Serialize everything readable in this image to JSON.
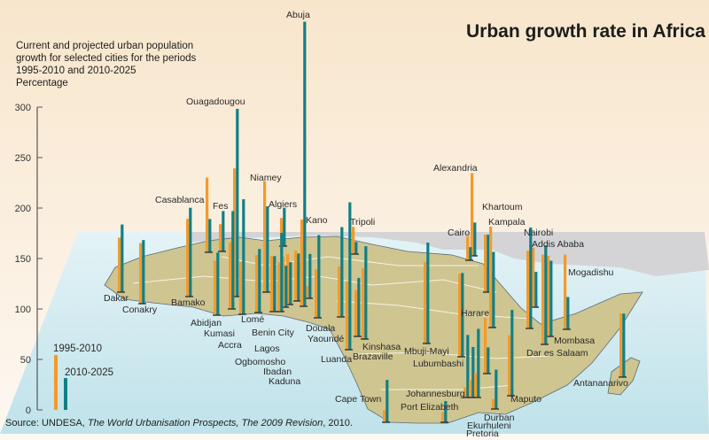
{
  "title": "Urban growth rate in Africa",
  "subtitle": [
    "Current and projected urban population",
    "growth for selected cities for the periods",
    "1995-2010 and 2010-2025"
  ],
  "unit": "Percentage",
  "source": {
    "prefix": "Source: UNDESA, ",
    "italic1": "The World Urbanisation Prospects, The 2009 Revision",
    "suffix": ", 2010."
  },
  "colors": {
    "period_1995_2010": "#f39a2b",
    "period_2010_2025": "#127f86",
    "land": "#cfc590",
    "sea": "#cfe9ef",
    "other_land": "#d4d4d6"
  },
  "chart_data": {
    "type": "bar",
    "subtype": "3d map-positioned bars",
    "ylabel": "Percentage",
    "ylim": [
      0,
      300
    ],
    "yticks": [
      "0",
      "50",
      "100",
      "150",
      "200",
      "250",
      "300"
    ],
    "legend": {
      "placement": "bottom-left",
      "entries": [
        "1995-2010",
        "2010-2025"
      ]
    },
    "series_names": [
      "1995-2010",
      "2010-2025"
    ],
    "cities": [
      {
        "name": "Dakar",
        "v1": 54,
        "v2": 67
      },
      {
        "name": "Conakry",
        "v1": 60,
        "v2": 63
      },
      {
        "name": "Bamako",
        "v1": 77,
        "v2": 88
      },
      {
        "name": "Casablanca",
        "v1": 74,
        "v2": 33
      },
      {
        "name": "Fes",
        "v1": 27,
        "v2": 40
      },
      {
        "name": "Ouagadougou",
        "v1": 127,
        "v2": 186
      },
      {
        "name": "Abidjan",
        "v1": 54,
        "v2": 62
      },
      {
        "name": "Kumasi",
        "v1": 66,
        "v2": 97
      },
      {
        "name": "Accra",
        "v1": 52,
        "v2": 114
      },
      {
        "name": "Lomé",
        "v1": 57,
        "v2": 63
      },
      {
        "name": "Benin City",
        "v1": 55,
        "v2": 55
      },
      {
        "name": "Lagos",
        "v1": 49,
        "v2": 78
      },
      {
        "name": "Ogbomosho",
        "v1": 50,
        "v2": 41
      },
      {
        "name": "Ibadan",
        "v1": 50,
        "v2": 42
      },
      {
        "name": "Kaduna",
        "v1": 50,
        "v2": 47
      },
      {
        "name": "Niamey",
        "v1": 110,
        "v2": 85
      },
      {
        "name": "Algiers",
        "v1": 28,
        "v2": 38
      },
      {
        "name": "Abuja",
        "v1": 86,
        "v2": 282
      },
      {
        "name": "Kano",
        "v1": 12,
        "v2": 44
      },
      {
        "name": "Douala",
        "v1": 48,
        "v2": 82
      },
      {
        "name": "Yaoundé",
        "v1": 50,
        "v2": 89
      },
      {
        "name": "Luanda",
        "v1": 68,
        "v2": 146
      },
      {
        "name": "Tripoli",
        "v1": 27,
        "v2": 12
      },
      {
        "name": "Kinshasa",
        "v1": 70,
        "v2": 92
      },
      {
        "name": "Brazaville",
        "v1": 46,
        "v2": 58
      },
      {
        "name": "Mbuji-Mayi",
        "v1": 81,
        "v2": 100
      },
      {
        "name": "Lubumbashi",
        "v1": 82,
        "v2": 83
      },
      {
        "name": "Cairo",
        "v1": 24,
        "v2": 13
      },
      {
        "name": "Alexandria",
        "v1": 82,
        "v2": 33
      },
      {
        "name": "Khartoum",
        "v1": 57,
        "v2": 57
      },
      {
        "name": "Kampala",
        "v1": 100,
        "v2": 75
      },
      {
        "name": "Harare",
        "v1": 55,
        "v2": 26
      },
      {
        "name": "Nairobi",
        "v1": 77,
        "v2": 100
      },
      {
        "name": "Addis Ababa",
        "v1": 59,
        "v2": 35
      },
      {
        "name": "Dar es Salaam",
        "v1": 89,
        "v2": 98
      },
      {
        "name": "Mombasa",
        "v1": 80,
        "v2": 75
      },
      {
        "name": "Mogadishu",
        "v1": 74,
        "v2": 32
      },
      {
        "name": "Maputo",
        "v1": 60,
        "v2": 85
      },
      {
        "name": "Antananarivo",
        "v1": 63,
        "v2": 63
      },
      {
        "name": "Johannesburg",
        "v1": 10,
        "v2": 62
      },
      {
        "name": "Ekurhuleni",
        "v1": 17,
        "v2": 50
      },
      {
        "name": "Pretoria",
        "v1": 24,
        "v2": 68
      },
      {
        "name": "Durban",
        "v1": 10,
        "v2": 39
      },
      {
        "name": "Cape Town",
        "v1": 12,
        "v2": 42
      },
      {
        "name": "Port Elizabeth",
        "v1": 10,
        "v2": 21
      }
    ]
  }
}
